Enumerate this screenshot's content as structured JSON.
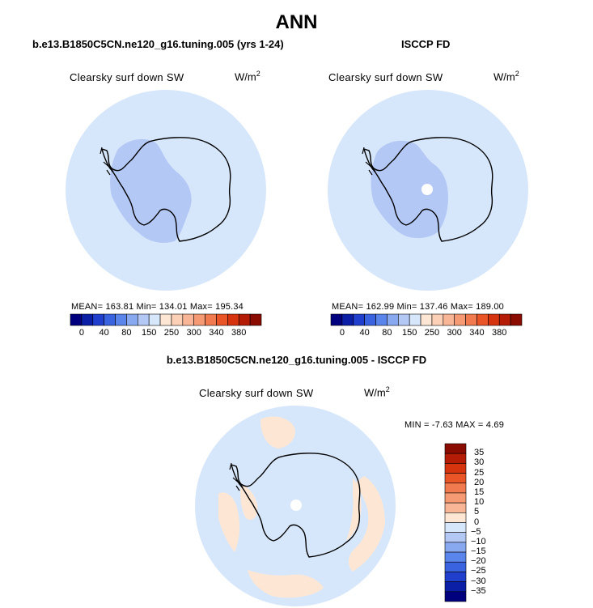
{
  "figure": {
    "title": "ANN"
  },
  "panels": [
    {
      "title": "b.e13.B1850C5CN.ne120_g16.tuning.005 (yrs 1-24)",
      "variable": "Clearsky surf down SW",
      "units_base": "W/m",
      "units_exp": "2",
      "stats": "MEAN= 163.81   Min= 134.01   Max= 195.34"
    },
    {
      "title": "ISCCP FD",
      "variable": "Clearsky surf down SW",
      "units_base": "W/m",
      "units_exp": "2",
      "stats": "MEAN= 162.99   Min= 137.46   Max= 189.00"
    },
    {
      "title": "b.e13.B1850C5CN.ne120_g16.tuning.005 - ISCCP FD",
      "variable": "Clearsky surf down SW",
      "units_base": "W/m",
      "units_exp": "2",
      "stats": "MIN =   -7.63  MAX =    4.69"
    }
  ],
  "chart_data": [
    {
      "type": "heatmap",
      "projection": "south-polar-stereographic",
      "title": "b.e13.B1850C5CN.ne120_g16.tuning.005 (yrs 1-24)",
      "variable": "Clearsky surf down SW",
      "units": "W/m^2",
      "mean": 163.81,
      "min": 134.01,
      "max": 195.34,
      "dominant_bins": {
        "ocean": "150-250",
        "west_antarctica": "120-150",
        "east_antarctica": "150-250"
      },
      "colorbar": {
        "orientation": "horizontal",
        "tick_labels": [
          "0",
          "40",
          "80",
          "150",
          "250",
          "300",
          "340",
          "380"
        ],
        "colors": [
          "#00007f",
          "#0a1fa6",
          "#1f3fcc",
          "#3a63e0",
          "#5a85ea",
          "#88a8f0",
          "#b4c8f6",
          "#d7e7fb",
          "#fde7d4",
          "#fbd0b6",
          "#f9b697",
          "#f69a74",
          "#f17a4e",
          "#ea5528",
          "#d6330f",
          "#b41c06",
          "#8a0b00"
        ]
      }
    },
    {
      "type": "heatmap",
      "projection": "south-polar-stereographic",
      "title": "ISCCP FD",
      "variable": "Clearsky surf down SW",
      "units": "W/m^2",
      "mean": 162.99,
      "min": 137.46,
      "max": 189.0,
      "missing_data": "south-pole",
      "colorbar": {
        "orientation": "horizontal",
        "tick_labels": [
          "0",
          "40",
          "80",
          "150",
          "250",
          "300",
          "340",
          "380"
        ],
        "colors": [
          "#00007f",
          "#0a1fa6",
          "#1f3fcc",
          "#3a63e0",
          "#5a85ea",
          "#88a8f0",
          "#b4c8f6",
          "#d7e7fb",
          "#fde7d4",
          "#fbd0b6",
          "#f9b697",
          "#f69a74",
          "#f17a4e",
          "#ea5528",
          "#d6330f",
          "#b41c06",
          "#8a0b00"
        ]
      }
    },
    {
      "type": "heatmap",
      "projection": "south-polar-stereographic",
      "title": "b.e13.B1850C5CN.ne120_g16.tuning.005 - ISCCP FD",
      "variable": "Clearsky surf down SW",
      "units": "W/m^2",
      "min": -7.63,
      "max": 4.69,
      "dominant_bins": {
        "background": "0 to -5",
        "positive_patches": "0 to 5"
      },
      "colorbar": {
        "orientation": "vertical",
        "tick_labels": [
          "35",
          "30",
          "25",
          "20",
          "15",
          "10",
          "5",
          "0",
          "−5",
          "−10",
          "−15",
          "−20",
          "−25",
          "−30",
          "−35"
        ],
        "colors_top_to_bottom": [
          "#8a0b00",
          "#b41c06",
          "#d6330f",
          "#ea5528",
          "#f17a4e",
          "#f69a74",
          "#f9b697",
          "#fde7d4",
          "#d7e7fb",
          "#b4c8f6",
          "#88a8f0",
          "#5a85ea",
          "#3a63e0",
          "#1f3fcc",
          "#0a1fa6",
          "#00007f"
        ]
      }
    }
  ]
}
